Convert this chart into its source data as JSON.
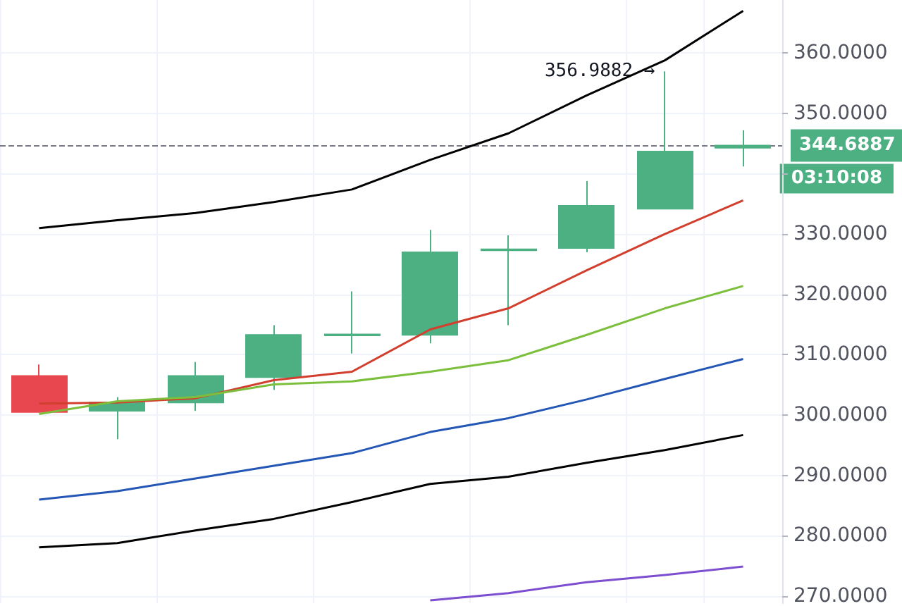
{
  "chart_data": {
    "type": "candlestick",
    "categories": [
      null,
      null,
      null,
      null,
      null,
      null,
      null,
      null,
      null,
      null
    ],
    "ohlc": [
      [
        306.5,
        308.4,
        300.5,
        300.5
      ],
      [
        300.7,
        303.0,
        296.0,
        302.1
      ],
      [
        302.1,
        308.8,
        300.7,
        306.5
      ],
      [
        306.3,
        314.9,
        304.2,
        313.3
      ],
      [
        313.2,
        320.5,
        310.2,
        313.4
      ],
      [
        313.3,
        330.7,
        311.9,
        327.0
      ],
      [
        327.3,
        329.8,
        314.9,
        327.5
      ],
      [
        327.7,
        338.8,
        327.0,
        334.7
      ],
      [
        334.2,
        356.9882,
        334.2,
        343.7
      ],
      [
        344.3,
        347.2,
        341.2,
        344.6887
      ]
    ],
    "colors": [
      "#e8474f",
      "#4cb083",
      "#4cb083",
      "#4cb083",
      "#4cb083",
      "#4cb083",
      "#4cb083",
      "#4cb083",
      "#4cb083",
      "#4cb083"
    ],
    "series": [
      {
        "type": "line",
        "color": "#000000",
        "values": [
          331.0,
          332.3,
          333.5,
          335.3,
          337.4,
          342.3,
          346.7,
          353.0,
          358.8,
          367.0
        ]
      },
      {
        "type": "line",
        "color": "#d23f2e",
        "values": [
          301.9,
          302.1,
          302.8,
          305.8,
          307.2,
          314.2,
          317.7,
          324.0,
          330.0,
          335.6
        ]
      },
      {
        "type": "line",
        "color": "#7cbf3c",
        "values": [
          300.2,
          302.3,
          303.0,
          305.1,
          305.6,
          307.2,
          309.1,
          313.3,
          317.7,
          321.4
        ]
      },
      {
        "type": "line",
        "color": "#2457b5",
        "values": [
          286.0,
          287.4,
          289.5,
          291.6,
          293.7,
          297.2,
          299.5,
          302.6,
          306.0,
          309.3
        ]
      },
      {
        "type": "line",
        "color": "#000000",
        "values": [
          278.1,
          278.8,
          280.9,
          282.8,
          285.6,
          288.6,
          289.8,
          292.1,
          294.2,
          296.7
        ]
      },
      {
        "type": "line",
        "color": "#7d4fd0",
        "values": [
          null,
          null,
          null,
          null,
          null,
          269.3,
          270.5,
          272.3,
          273.5,
          274.9
        ]
      }
    ],
    "ylim": [
      268.8,
      368.8
    ],
    "yticks": [
      {
        "value": 270,
        "label": "270.0000"
      },
      {
        "value": 280,
        "label": "280.0000"
      },
      {
        "value": 290,
        "label": "290.0000"
      },
      {
        "value": 300,
        "label": "300.0000"
      },
      {
        "value": 310,
        "label": "310.0000"
      },
      {
        "value": 320,
        "label": "320.0000"
      },
      {
        "value": 330,
        "label": "330.0000"
      },
      {
        "value": 340,
        "label": null
      },
      {
        "value": 350,
        "label": "350.0000"
      },
      {
        "value": 360,
        "label": "360.0000"
      }
    ],
    "ref_lines": [
      {
        "axis": "y",
        "value": 344.6887,
        "label": "344.6887",
        "line_style": "dashed"
      }
    ],
    "annotations": [
      "356.9882 →",
      "03:10:08"
    ],
    "tick_labels": "y",
    "grid": true,
    "marker": "none"
  }
}
